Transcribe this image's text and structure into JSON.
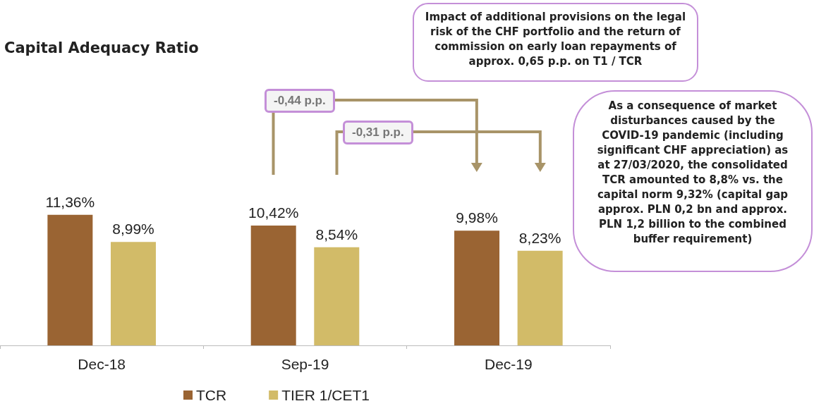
{
  "chart_data": {
    "type": "bar",
    "title": "Capital Adequacy Ratio",
    "categories": [
      "Dec-18",
      "Sep-19",
      "Dec-19"
    ],
    "series": [
      {
        "name": "TCR",
        "color": "#9a6433",
        "values": [
          11.36,
          10.42,
          9.98
        ],
        "value_labels": [
          "11,36%",
          "10,42%",
          "9,98%"
        ]
      },
      {
        "name": "TIER 1/CET1",
        "color": "#d2bb68",
        "values": [
          8.99,
          8.54,
          8.23
        ],
        "value_labels": [
          "8,99%",
          "8,54%",
          "8,23%"
        ]
      }
    ],
    "legend": "bottom",
    "annotations": [
      "-0,44 p.p.",
      "-0,31 p.p.",
      "Impact of additional provisions on the legal risk of the CHF portfolio and the return of commission on early loan repayments of approx. 0,65 p.p. on T1 / TCR",
      "As a consequence of market disturbances caused by the COVID-19 pandemic (including significant CHF appreciation) as at 27/03/2020, the consolidated TCR amounted to 8,8% vs. the capital norm 9,32% (capital gap approx. PLN 0,2 bn and approx. PLN 1,2 billion to the combined buffer requirement)"
    ]
  }
}
